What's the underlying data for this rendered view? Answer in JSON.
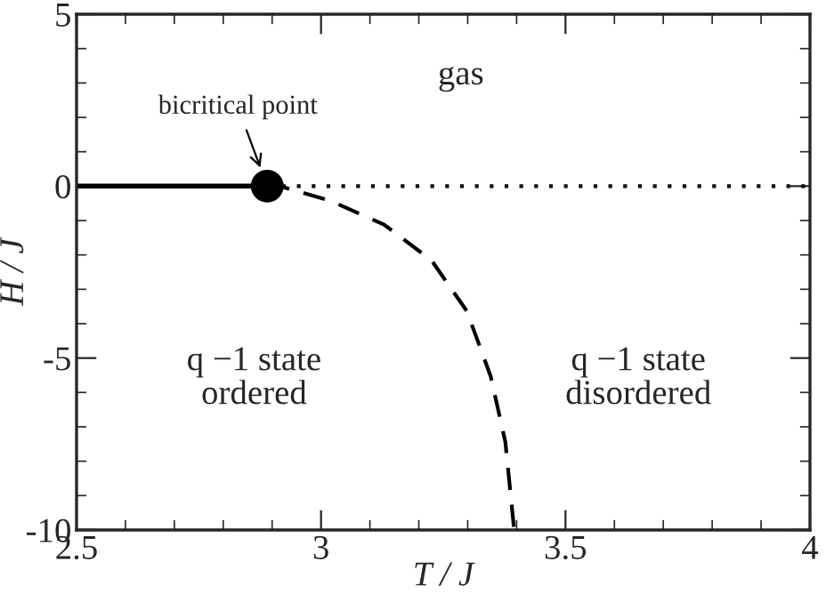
{
  "chart_data": {
    "type": "line",
    "xlabel": "T / J",
    "ylabel": "H / J",
    "xlim": [
      2.5,
      4
    ],
    "ylim": [
      -10,
      5
    ],
    "xticks": [
      2.5,
      3,
      3.5,
      4
    ],
    "yticks": [
      -10,
      -5,
      0,
      5
    ],
    "grid": false,
    "series": [
      {
        "type": "line",
        "line_style": "solid",
        "color": "#000000",
        "x": [
          2.5,
          2.89
        ],
        "values": [
          0,
          0
        ]
      },
      {
        "type": "line",
        "line_style": "dotted",
        "color": "#000000",
        "x": [
          2.89,
          4
        ],
        "values": [
          0,
          0
        ]
      },
      {
        "type": "line",
        "line_style": "dashed",
        "color": "#000000",
        "x": [
          2.89,
          2.923,
          3.02,
          3.129,
          3.226,
          3.298,
          3.347,
          3.377,
          3.395
        ],
        "values": [
          0,
          -0.03,
          -0.43,
          -1.12,
          -2.16,
          -3.63,
          -5.53,
          -7.44,
          -10
        ]
      },
      {
        "type": "scatter",
        "marker": "circle",
        "color": "#000000",
        "x": [
          2.89
        ],
        "values": [
          0
        ]
      }
    ],
    "annotations": [
      {
        "text": "bicritical point",
        "x": 2.89,
        "y": 0
      },
      "gas",
      "q −1 state\nordered",
      "q −1 state\ndisordered"
    ]
  }
}
